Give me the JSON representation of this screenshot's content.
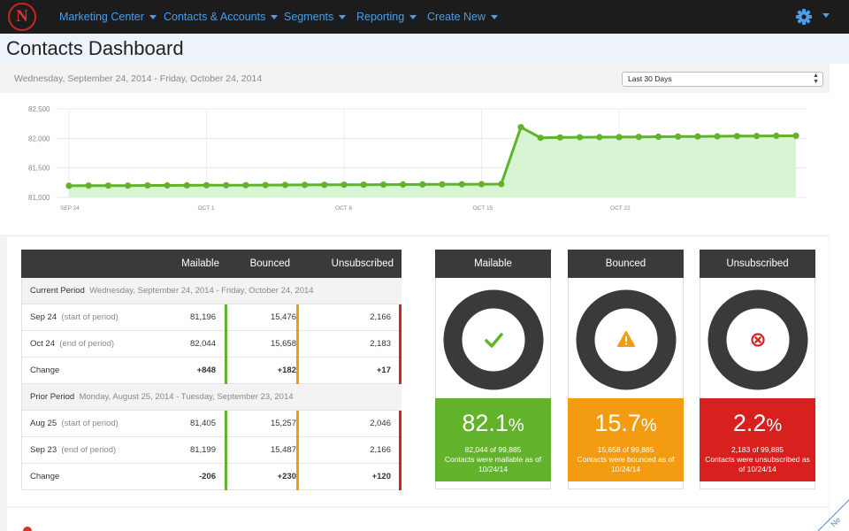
{
  "nav": {
    "items": [
      {
        "label": "Marketing Center"
      },
      {
        "label": "Contacts & Accounts"
      },
      {
        "label": "Segments"
      },
      {
        "label": "Reporting"
      },
      {
        "label": "Create New"
      }
    ],
    "logo_letter": "N",
    "settings_icon": "gear-icon"
  },
  "page": {
    "title": "Contacts Dashboard",
    "date_range": "Wednesday, September 24, 2014  -  Friday, October 24, 2014",
    "period_select": "Last 30 Days",
    "corner_text": "Ne"
  },
  "chart_data": {
    "type": "area",
    "x_tick_labels": [
      "SEP 24",
      "OCT 1",
      "OCT 8",
      "OCT 15",
      "OCT 22"
    ],
    "yticks": [
      "82,500",
      "82,000",
      "81,500",
      "81,000"
    ],
    "ylim": [
      81000,
      82500
    ],
    "grid": true,
    "series": [
      {
        "values": [
          81196,
          81200,
          81200,
          81200,
          81202,
          81203,
          81204,
          81205,
          81206,
          81207,
          81208,
          81210,
          81212,
          81213,
          81214,
          81215,
          81216,
          81218,
          81219,
          81220,
          81222,
          81223,
          81225,
          82190,
          82010,
          82015,
          82018,
          82020,
          82022,
          82025,
          82028,
          82030,
          82032,
          82035,
          82038,
          82040,
          82042,
          82044
        ],
        "color": "#62b22c",
        "fill": "#d8f5d3"
      }
    ]
  },
  "table": {
    "headers": [
      "Mailable",
      "Bounced",
      "Unsubscribed"
    ],
    "current_period": {
      "label": "Current Period",
      "range": "Wednesday, September 24, 2014  -  Friday, October 24, 2014"
    },
    "current_rows": [
      {
        "label": "Sep 24",
        "sub": "(start of period)",
        "mailable": "81,196",
        "bounced": "15,476",
        "unsub": "2,166"
      },
      {
        "label": "Oct 24",
        "sub": "(end of period)",
        "mailable": "82,044",
        "bounced": "15,658",
        "unsub": "2,183"
      },
      {
        "label": "Change",
        "sub": "",
        "mailable": "+848",
        "bounced": "+182",
        "unsub": "+17"
      }
    ],
    "prior_period": {
      "label": "Prior Period",
      "range": "Monday, August 25, 2014  -  Tuesday, September 23, 2014"
    },
    "prior_rows": [
      {
        "label": "Aug 25",
        "sub": "(start of period)",
        "mailable": "81,405",
        "bounced": "15,257",
        "unsub": "2,046"
      },
      {
        "label": "Sep 23",
        "sub": "(end of period)",
        "mailable": "81,199",
        "bounced": "15,487",
        "unsub": "2,166"
      },
      {
        "label": "Change",
        "sub": "",
        "mailable": "-206",
        "bounced": "+230",
        "unsub": "+120"
      }
    ]
  },
  "cards": [
    {
      "title": "Mailable",
      "pct": "82.1",
      "sign": "%",
      "line1": "82,044 of 99,885",
      "line2": "Contacts were mailable as of 10/24/14",
      "color": "#62b22c",
      "icon": "check-icon"
    },
    {
      "title": "Bounced",
      "pct": "15.7",
      "sign": "%",
      "line1": "15,658 of 99,885",
      "line2": "Contacts were bounced as of 10/24/14",
      "color": "#f39c12",
      "icon": "warning-icon"
    },
    {
      "title": "Unsubscribed",
      "pct": "2.2",
      "sign": "%",
      "line1": "2,183 of 99,885",
      "line2": "Contacts were unsubscribed as of 10/24/14",
      "color": "#d8201f",
      "icon": "cancel-icon"
    }
  ]
}
